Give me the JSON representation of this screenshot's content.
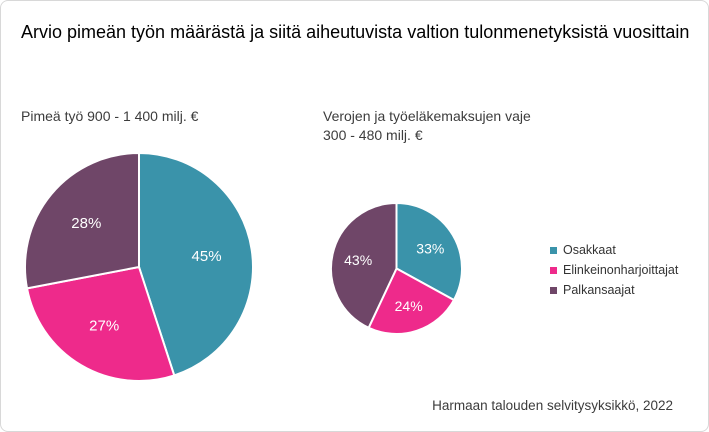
{
  "title": "Arvio pimeän työn määrästä ja siitä aiheutuvista valtion tulonmenetyksistä vuosittain",
  "source": "Harmaan talouden selvitysyksikkö, 2022",
  "colors": {
    "teal": "#3A93AA",
    "magenta": "#EE2A8B",
    "plum": "#6F4668",
    "slice_label": "#FFFFFF",
    "title_text": "#000000",
    "secondary_text": "#3C3C3C",
    "frame_border": "#D8D8D8"
  },
  "legend": {
    "position": "right",
    "items": [
      {
        "label": "Osakkaat",
        "color": "#3A93AA"
      },
      {
        "label": "Elinkeinonharjoittajat",
        "color": "#EE2A8B"
      },
      {
        "label": "Palkansaajat",
        "color": "#6F4668"
      }
    ]
  },
  "chart_data": [
    {
      "type": "pie",
      "title": "Pimeä työ 900 - 1 400 milj. €",
      "title_lines": [
        "Pimeä työ 900 - 1 400 milj. €"
      ],
      "categories": [
        "Osakkaat",
        "Elinkeinonharjoittajat",
        "Palkansaajat"
      ],
      "values": [
        45,
        27,
        28
      ],
      "labels": [
        "45%",
        "27%",
        "28%"
      ],
      "slice_colors": [
        "#3A93AA",
        "#EE2A8B",
        "#6F4668"
      ],
      "start_angle_deg": 0,
      "direction": "clockwise"
    },
    {
      "type": "pie",
      "title": "Verojen ja työeläkemaksujen vaje 300 - 480 milj. €",
      "title_lines": [
        "Verojen ja työeläkemaksujen vaje",
        "300 - 480 milj. €"
      ],
      "categories": [
        "Osakkaat",
        "Elinkeinonharjoittajat",
        "Palkansaajat"
      ],
      "values": [
        33,
        24,
        43
      ],
      "labels": [
        "33%",
        "24%",
        "43%"
      ],
      "slice_colors": [
        "#3A93AA",
        "#EE2A8B",
        "#6F4668"
      ],
      "start_angle_deg": 0,
      "direction": "clockwise"
    }
  ]
}
